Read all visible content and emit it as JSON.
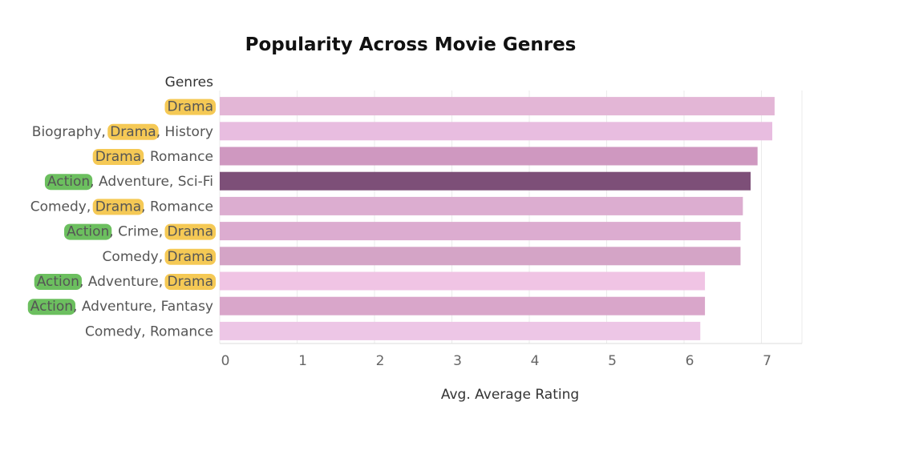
{
  "chart_data": {
    "type": "bar",
    "orientation": "horizontal",
    "title": "Popularity Across Movie Genres",
    "xlabel": "Avg. Average Rating",
    "ylabel": "Genres",
    "xlim": [
      0,
      7.5
    ],
    "xticks": [
      "0",
      "1",
      "2",
      "3",
      "4",
      "5",
      "6",
      "7"
    ],
    "grid": true,
    "categories": [
      "Drama",
      "Biography, Drama, History",
      "Drama, Romance",
      "Action, Adventure, Sci-Fi",
      "Comedy, Drama, Romance",
      "Action, Crime, Drama",
      "Comedy, Drama",
      "Action, Adventure, Drama",
      "Action, Adventure, Fantasy",
      "Comedy, Romance"
    ],
    "values": [
      7.17,
      7.14,
      6.95,
      6.86,
      6.76,
      6.73,
      6.73,
      6.27,
      6.27,
      6.21
    ],
    "bar_colors": [
      "#e3b6d6",
      "#e8bde0",
      "#cf98c0",
      "#7d4f78",
      "#dcadd0",
      "#dcacd0",
      "#d4a4c6",
      "#f0c4e4",
      "#d9a6ca",
      "#edc6e6"
    ],
    "highlight_colors": {
      "Drama": "#f5c955",
      "Action": "#6cbf5f"
    }
  }
}
